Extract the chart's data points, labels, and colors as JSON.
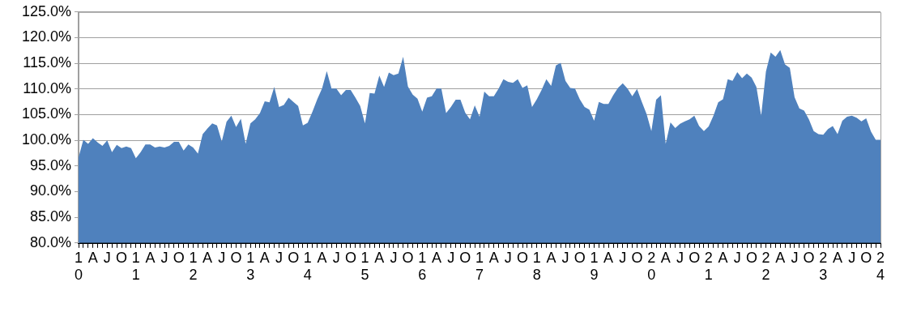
{
  "chart_data": {
    "type": "area",
    "categories": [
      "10",
      null,
      null,
      "A",
      null,
      null,
      "J",
      null,
      null,
      "O",
      null,
      null,
      "11",
      null,
      null,
      "A",
      null,
      null,
      "J",
      null,
      null,
      "O",
      null,
      null,
      "12",
      null,
      null,
      "A",
      null,
      null,
      "J",
      null,
      null,
      "O",
      null,
      null,
      "13",
      null,
      null,
      "A",
      null,
      null,
      "J",
      null,
      null,
      "O",
      null,
      null,
      "14",
      null,
      null,
      "A",
      null,
      null,
      "J",
      null,
      null,
      "O",
      null,
      null,
      "15",
      null,
      null,
      "A",
      null,
      null,
      "J",
      null,
      null,
      "O",
      null,
      null,
      "16",
      null,
      null,
      "A",
      null,
      null,
      "J",
      null,
      null,
      "O",
      null,
      null,
      "17",
      null,
      null,
      "A",
      null,
      null,
      "J",
      null,
      null,
      "O",
      null,
      null,
      "18",
      null,
      null,
      "A",
      null,
      null,
      "J",
      null,
      null,
      "O",
      null,
      null,
      "19",
      null,
      null,
      "A",
      null,
      null,
      "J",
      null,
      null,
      "O",
      null,
      null,
      "20",
      null,
      null,
      "A",
      null,
      null,
      "J",
      null,
      null,
      "O",
      null,
      null,
      "21",
      null,
      null,
      "A",
      null,
      null,
      "J",
      null,
      null,
      "O",
      null,
      null,
      "22",
      null,
      null,
      "A",
      null,
      null,
      "J",
      null,
      null,
      "O",
      null,
      null,
      "23",
      null,
      null,
      "A",
      null,
      null,
      "J",
      null,
      null,
      "O",
      null,
      null,
      "24"
    ],
    "series": [
      {
        "color": "#4f81bd",
        "values": [
          96.7,
          100.1,
          99.3,
          100.4,
          99.6,
          98.9,
          100.0,
          97.7,
          99.1,
          98.5,
          98.8,
          98.5,
          96.5,
          97.7,
          99.2,
          99.2,
          98.6,
          98.8,
          98.6,
          98.9,
          99.7,
          99.7,
          98.0,
          99.2,
          98.6,
          97.4,
          101.2,
          102.3,
          103.3,
          102.9,
          99.8,
          103.6,
          104.8,
          102.6,
          104.2,
          99.3,
          103.3,
          104.1,
          105.3,
          107.6,
          107.4,
          110.4,
          106.5,
          106.9,
          108.3,
          107.5,
          106.7,
          102.9,
          103.4,
          105.6,
          108.0,
          110.1,
          113.5,
          110.1,
          110.1,
          108.8,
          109.8,
          109.8,
          108.3,
          106.7,
          103.3,
          109.2,
          109.1,
          112.6,
          110.4,
          113.2,
          112.7,
          113.0,
          116.3,
          110.5,
          108.9,
          108.1,
          105.6,
          108.3,
          108.6,
          110.1,
          110.1,
          105.3,
          106.5,
          107.9,
          107.9,
          105.4,
          104.1,
          106.8,
          104.6,
          109.5,
          108.6,
          108.6,
          110.1,
          111.9,
          111.4,
          111.2,
          111.9,
          110.2,
          110.7,
          106.5,
          108.0,
          109.8,
          111.9,
          110.6,
          114.6,
          115.1,
          111.6,
          110.2,
          110.1,
          108.0,
          106.5,
          106.0,
          103.8,
          107.5,
          107.1,
          107.1,
          108.8,
          110.2,
          111.1,
          110.1,
          108.6,
          110.0,
          107.5,
          105.1,
          101.8,
          107.9,
          108.8,
          99.3,
          103.5,
          102.4,
          103.2,
          103.7,
          104.1,
          104.8,
          102.8,
          101.8,
          102.7,
          104.8,
          107.4,
          108.0,
          111.9,
          111.6,
          113.3,
          112.1,
          113.0,
          112.2,
          110.4,
          104.8,
          113.4,
          117.1,
          116.3,
          117.6,
          114.8,
          114.1,
          108.4,
          106.2,
          105.8,
          104.1,
          101.8,
          101.2,
          101.1,
          102.2,
          102.8,
          101.2,
          103.8,
          104.6,
          104.8,
          104.4,
          103.7,
          104.3,
          101.7,
          100.1,
          100.1
        ]
      }
    ],
    "ylim": [
      80,
      125
    ],
    "yticks": [
      {
        "value": 80,
        "label": "80.0%"
      },
      {
        "value": 85,
        "label": "85.0%"
      },
      {
        "value": 90,
        "label": "90.0%"
      },
      {
        "value": 95,
        "label": "95.0%"
      },
      {
        "value": 100,
        "label": "100.0%"
      },
      {
        "value": 105,
        "label": "105.0%"
      },
      {
        "value": 110,
        "label": "110.0%"
      },
      {
        "value": 115,
        "label": "115.0%"
      },
      {
        "value": 120,
        "label": "120.0%"
      },
      {
        "value": 125,
        "label": "125.0%"
      }
    ],
    "grid": "y",
    "legend": false
  }
}
